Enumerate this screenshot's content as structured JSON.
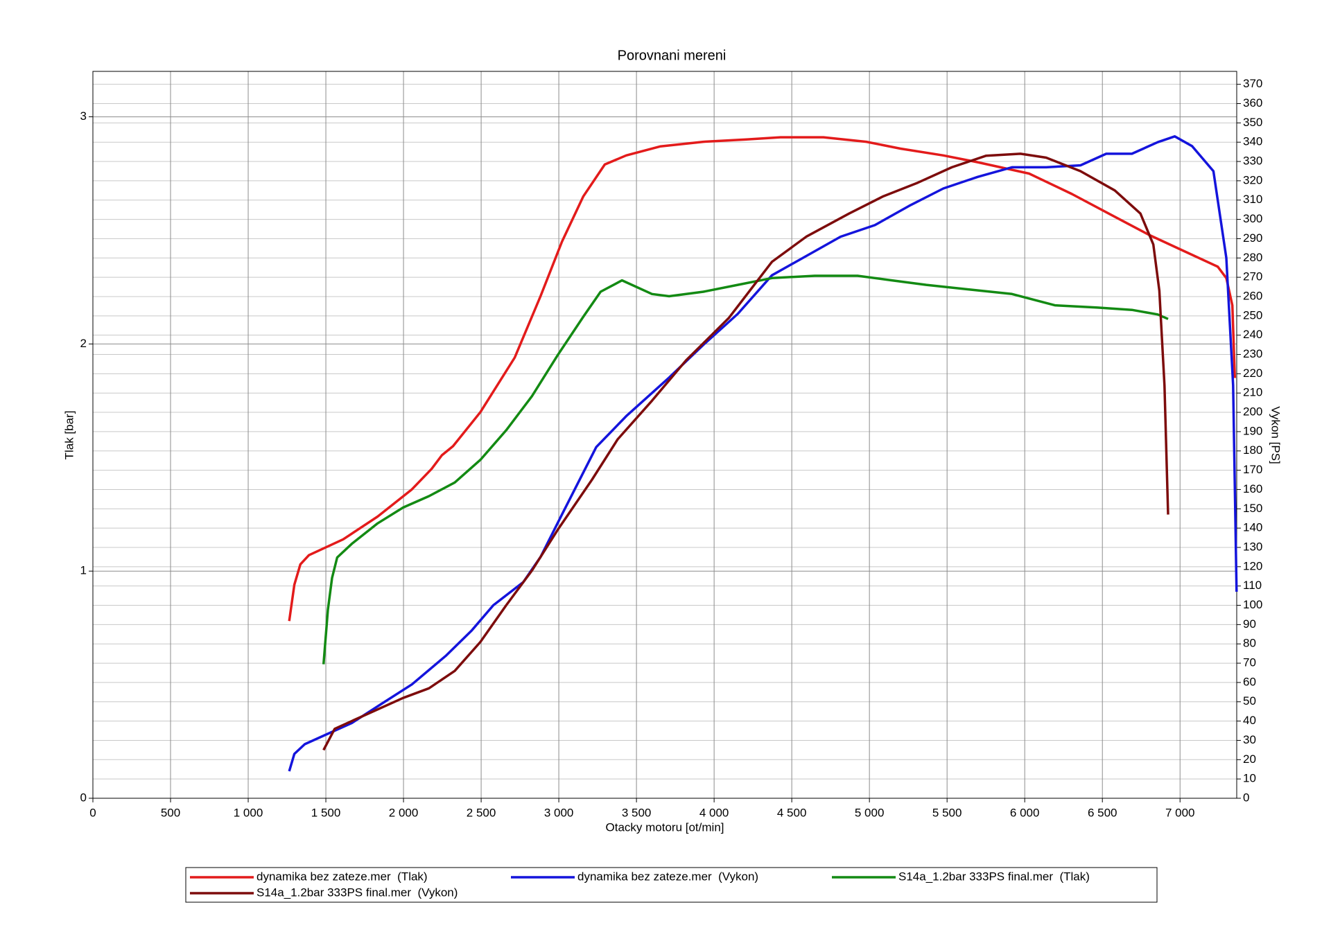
{
  "chart_data": {
    "type": "line",
    "title": "Porovnani mereni",
    "x_label": "Otacky motoru [ot/min]",
    "y_label": "Tlak [bar]",
    "y2_label": "Vykon [PS]",
    "xlim": [
      0,
      7365
    ],
    "ylim": [
      0,
      3.2
    ],
    "y2lim": [
      0,
      376.7
    ],
    "xticks": [
      0,
      500,
      {
        "value": 1000,
        "label": "1 000"
      },
      {
        "value": 1500,
        "label": "1 500"
      },
      {
        "value": 2000,
        "label": "2 000"
      },
      {
        "value": 2500,
        "label": "2 500"
      },
      {
        "value": 3000,
        "label": "3 000"
      },
      {
        "value": 3500,
        "label": "3 500"
      },
      {
        "value": 4000,
        "label": "4 000"
      },
      {
        "value": 4500,
        "label": "4 500"
      },
      {
        "value": 5000,
        "label": "5 000"
      },
      {
        "value": 5500,
        "label": "5 500"
      },
      {
        "value": 6000,
        "label": "6 000"
      },
      {
        "value": 6500,
        "label": "6 500"
      },
      {
        "value": 7000,
        "label": "7 000"
      }
    ],
    "yticks": [
      0,
      1,
      2,
      3
    ],
    "y2ticks": [
      0,
      10,
      20,
      30,
      40,
      50,
      60,
      70,
      80,
      90,
      100,
      110,
      120,
      130,
      140,
      150,
      160,
      170,
      180,
      190,
      200,
      210,
      220,
      230,
      240,
      250,
      260,
      270,
      280,
      290,
      300,
      310,
      320,
      330,
      340,
      350,
      360,
      370
    ],
    "grid": true,
    "legend": "bottom",
    "series": [
      {
        "name": "dynamika bez zateze.mer  (Tlak)",
        "color": "#e31b1b",
        "axis": "y",
        "x": [
          1264,
          1297,
          1336,
          1391,
          1612,
          1833,
          2054,
          2181,
          2247,
          2319,
          2495,
          2716,
          2882,
          3020,
          3158,
          3296,
          3434,
          3655,
          3931,
          4207,
          4427,
          4704,
          4980,
          5200,
          5476,
          5697,
          6028,
          6304,
          6580,
          6801,
          7022,
          7243,
          7298,
          7337,
          7353
        ],
        "values": [
          0.78,
          0.94,
          1.03,
          1.07,
          1.14,
          1.24,
          1.36,
          1.45,
          1.51,
          1.55,
          1.7,
          1.94,
          2.21,
          2.45,
          2.65,
          2.79,
          2.83,
          2.87,
          2.89,
          2.9,
          2.91,
          2.91,
          2.89,
          2.86,
          2.83,
          2.8,
          2.75,
          2.66,
          2.56,
          2.48,
          2.41,
          2.34,
          2.29,
          2.17,
          1.85
        ]
      },
      {
        "name": "dynamika bez zateze.mer  (Vykon)",
        "color": "#1414dc",
        "axis": "y2",
        "x": [
          1264,
          1297,
          1364,
          1474,
          1667,
          1860,
          2054,
          2275,
          2440,
          2578,
          2771,
          2882,
          3020,
          3241,
          3434,
          3710,
          3931,
          4152,
          4372,
          4593,
          4814,
          5035,
          5256,
          5476,
          5697,
          5918,
          6138,
          6359,
          6525,
          6690,
          6856,
          6966,
          7077,
          7215,
          7298,
          7342,
          7364
        ],
        "values": [
          14,
          23,
          28,
          32,
          39,
          49,
          59,
          74,
          87,
          100,
          112,
          125,
          147,
          182,
          198,
          218,
          235,
          251,
          271,
          281,
          291,
          297,
          307,
          316,
          322,
          327,
          327,
          328,
          334,
          334,
          340,
          343,
          338,
          325,
          280,
          214,
          107
        ]
      },
      {
        "name": "S14a_1.2bar 333PS final.mer  (Tlak)",
        "color": "#138a13",
        "axis": "y",
        "x": [
          1485,
          1513,
          1540,
          1573,
          1667,
          1833,
          1998,
          2164,
          2330,
          2495,
          2661,
          2827,
          2992,
          3158,
          3269,
          3407,
          3600,
          3710,
          3931,
          4152,
          4372,
          4648,
          4924,
          5145,
          5366,
          5642,
          5918,
          6194,
          6470,
          6690,
          6856,
          6923
        ],
        "values": [
          0.59,
          0.83,
          0.97,
          1.06,
          1.12,
          1.21,
          1.28,
          1.33,
          1.39,
          1.49,
          1.62,
          1.77,
          1.95,
          2.12,
          2.23,
          2.28,
          2.22,
          2.21,
          2.23,
          2.26,
          2.29,
          2.3,
          2.3,
          2.28,
          2.26,
          2.24,
          2.22,
          2.17,
          2.16,
          2.15,
          2.13,
          2.11
        ]
      },
      {
        "name": "S14a_1.2bar 333PS final.mer  (Vykon)",
        "color": "#7d0c0c",
        "axis": "y2",
        "x": [
          1485,
          1557,
          1722,
          1998,
          2164,
          2330,
          2495,
          2661,
          2827,
          2992,
          3213,
          3379,
          3600,
          3820,
          4096,
          4372,
          4593,
          4869,
          5090,
          5311,
          5531,
          5752,
          5973,
          6138,
          6359,
          6580,
          6745,
          6828,
          6867,
          6900,
          6923
        ],
        "values": [
          25,
          36,
          42,
          52,
          57,
          66,
          81,
          100,
          118,
          139,
          165,
          186,
          206,
          227,
          249,
          278,
          291,
          303,
          312,
          319,
          327,
          333,
          334,
          332,
          325,
          315,
          303,
          287,
          263,
          214,
          147
        ]
      }
    ]
  }
}
